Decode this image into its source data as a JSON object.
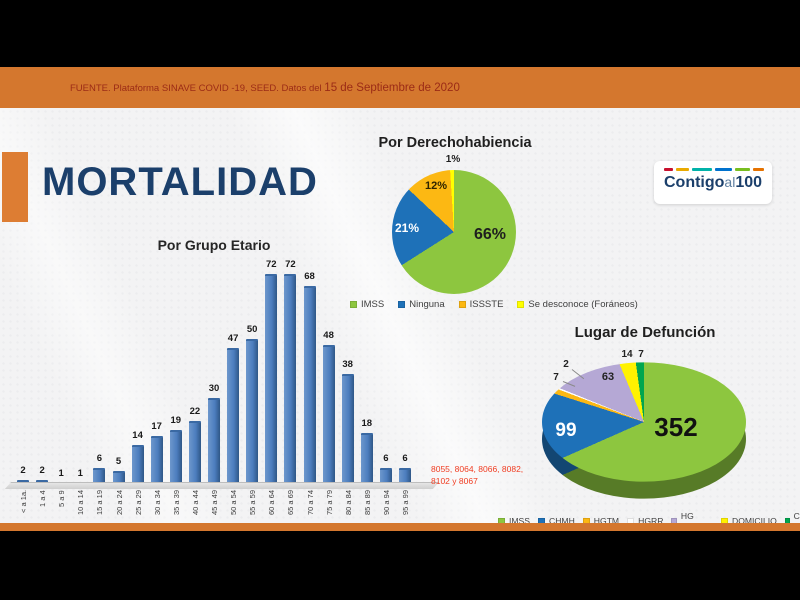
{
  "banner": {
    "prefix": "FUENTE. Plataforma SINAVE COVID -19, SEED. Datos del ",
    "date": "15 de Septiembre de 2020"
  },
  "page_title": "MORTALIDAD",
  "logo": {
    "part1": "Contigo",
    "part2": "al",
    "part3": "100"
  },
  "footnote": {
    "line1": "8055, 8064, 8066, 8082,",
    "line2": "8102 y 8067"
  },
  "colors": {
    "banner_orange": "#d4772e",
    "accent_orange": "#dd7d33",
    "title_navy": "#1b3f6b",
    "bar_blue": "#4d7ebf"
  },
  "chart_data": [
    {
      "type": "bar",
      "title": "Por Grupo Etario",
      "categories": [
        "< a 1a.",
        "1 a 4",
        "5 a 9",
        "10 a 14",
        "15 a 19",
        "20 a 24",
        "25 a 29",
        "30 a 34",
        "35 a 39",
        "40 a 44",
        "45 a 49",
        "50 a 54",
        "55 a 59",
        "60 a 64",
        "65 a 69",
        "70 a 74",
        "75 a 79",
        "80 a 84",
        "85 a 89",
        "90 a 94",
        "95 a 99"
      ],
      "values": [
        2,
        2,
        1,
        1,
        6,
        5,
        14,
        17,
        19,
        22,
        30,
        47,
        50,
        72,
        72,
        68,
        48,
        38,
        18,
        6,
        6
      ],
      "xlabel": "",
      "ylabel": "",
      "ylim": [
        0,
        72
      ],
      "grid": false,
      "bar_color": "#4d7ebf",
      "value_labels": true
    },
    {
      "type": "pie",
      "title": "Por Derechohabiencia",
      "labels": [
        "IMSS",
        "Ninguna",
        "ISSSTE",
        "Se desconoce (Foráneos)"
      ],
      "values": [
        66,
        21,
        12,
        1
      ],
      "slice_labels": [
        "66%",
        "21%",
        "12%",
        "1%"
      ],
      "colors": [
        "#8dc63f",
        "#1e71b8",
        "#fcb813",
        "#ffff00"
      ],
      "legend_position": "bottom"
    },
    {
      "type": "pie",
      "style": "3d",
      "title": "Lugar de Defunción",
      "labels": [
        "IMSS",
        "CHMH",
        "HGTM",
        "HGRR",
        "HG ISSSTE",
        "DOMICILIO",
        "CLINICA PRIVADA"
      ],
      "values": [
        352,
        99,
        7,
        2,
        63,
        14,
        7
      ],
      "colors": [
        "#8dc63f",
        "#1e71b8",
        "#fcb813",
        "#fdfdfd",
        "#b5a8d5",
        "#fff200",
        "#00a64f"
      ],
      "legend_position": "bottom"
    }
  ]
}
